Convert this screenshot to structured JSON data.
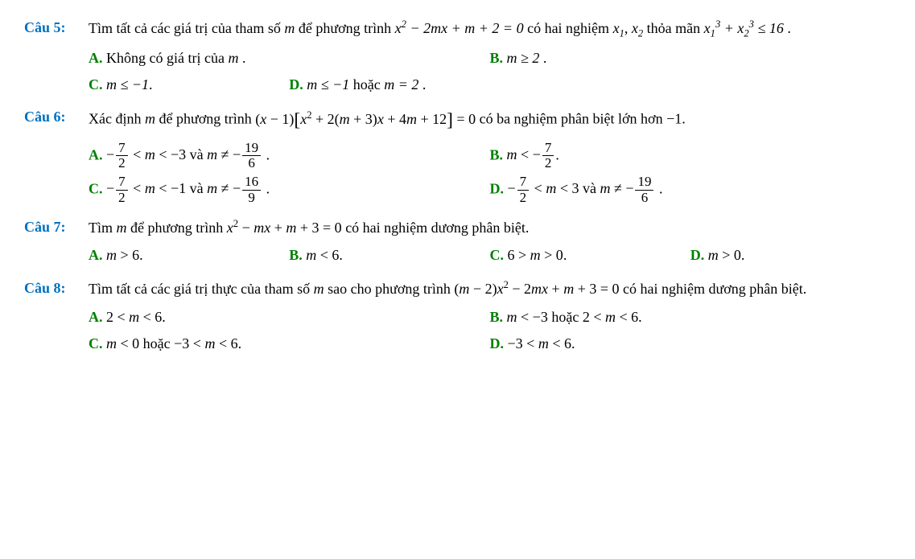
{
  "colors": {
    "question_label": "#0070c0",
    "option_label": "#008000",
    "text": "#000000",
    "background": "#ffffff"
  },
  "typography": {
    "family": "Times New Roman",
    "size_pt": 13,
    "label_bold": true
  },
  "questions": [
    {
      "id": "q5",
      "label": "Câu 5:",
      "text_parts": {
        "p1": "Tìm tất cả các giá trị của tham số ",
        "m1": "m",
        "p2": " để phương trình ",
        "eq1": "x² − 2mx + m + 2 = 0",
        "p3": " có hai nghiệm ",
        "x1": "x₁",
        "p4": ", ",
        "x2": "x₂",
        "p5": " thỏa mãn ",
        "eq2": "x₁³ + x₂³ ≤ 16",
        "p6": " ."
      },
      "options": {
        "A": {
          "label": "A.",
          "text": "Không có giá trị của ",
          "var": "m",
          "tail": " .",
          "width": "w50"
        },
        "B": {
          "label": "B.",
          "math": "m ≥ 2",
          "tail": " .",
          "width": "w50"
        },
        "C": {
          "label": "C.",
          "math": "m ≤ −1",
          "tail": ".",
          "width": "w25"
        },
        "D": {
          "label": "D.",
          "math": "m ≤ −1",
          "mid": " hoặc ",
          "math2": "m = 2",
          "tail": " .",
          "width": "w50"
        }
      }
    },
    {
      "id": "q6",
      "label": "Câu 6:",
      "text_parts": {
        "p1": "Xác định ",
        "m1": "m",
        "p2": " để phương trình ",
        "eq_pre": "(x − 1)",
        "eq_inner": "x² + 2(m + 3)x + 4m + 12",
        "eq_post": " = 0",
        "p3": " có ba nghiệm phân biệt lớn hơn ",
        "neg1": "−1",
        "p4": "."
      },
      "options": {
        "A": {
          "label": "A.",
          "pre": "−",
          "frac1_num": "7",
          "frac1_den": "2",
          "mid1": " < m < −3 và m ≠ −",
          "frac2_num": "19",
          "frac2_den": "6",
          "tail": " .",
          "width": "w50"
        },
        "B": {
          "label": "B.",
          "pre": "m < −",
          "frac1_num": "7",
          "frac1_den": "2",
          "tail": ".",
          "width": "w50"
        },
        "C": {
          "label": "C.",
          "pre": "−",
          "frac1_num": "7",
          "frac1_den": "2",
          "mid1": " < m < −1 và m ≠ −",
          "frac2_num": "16",
          "frac2_den": "9",
          "tail": " .",
          "width": "w50"
        },
        "D": {
          "label": "D.",
          "pre": "−",
          "frac1_num": "7",
          "frac1_den": "2",
          "mid1": " < m < 3 và m ≠ −",
          "frac2_num": "19",
          "frac2_den": "6",
          "tail": " .",
          "width": "w50"
        }
      }
    },
    {
      "id": "q7",
      "label": "Câu  7:",
      "text_parts": {
        "p1": "Tìm ",
        "m1": "m",
        "p2": " để phương trình ",
        "eq1": "x² − mx + m + 3 = 0",
        "p3": " có hai nghiệm dương phân biệt."
      },
      "options": {
        "A": {
          "label": "A.",
          "math": "m > 6",
          "tail": ".",
          "width": "w25"
        },
        "B": {
          "label": "B.",
          "math": "m < 6",
          "tail": ".",
          "width": "w25"
        },
        "C": {
          "label": "C.",
          "math": "6 > m > 0",
          "tail": ".",
          "width": "w25"
        },
        "D": {
          "label": "D.",
          "math": "m > 0",
          "tail": ".",
          "width": "w25"
        }
      }
    },
    {
      "id": "q8",
      "label": "Câu  8:",
      "text_parts": {
        "p1": "Tìm tất cả các giá trị thực của tham số ",
        "m1": "m",
        "p2": " sao cho phương trình ",
        "eq1": "(m − 2)x² − 2mx + m + 3 = 0",
        "p3": " có hai nghiệm dương phân biệt."
      },
      "options": {
        "A": {
          "label": "A.",
          "math": "2 < m < 6.",
          "width": "w50"
        },
        "B": {
          "label": "B.",
          "math": "m < −3",
          "mid": " hoặc ",
          "math2": "2 < m < 6.",
          "width": "w50"
        },
        "C": {
          "label": "C.",
          "math": "m < 0",
          "mid": " hoặc ",
          "math2": "−3 < m < 6.",
          "width": "w50"
        },
        "D": {
          "label": "D.",
          "math": "−3 < m < 6.",
          "width": "w50"
        }
      }
    }
  ]
}
